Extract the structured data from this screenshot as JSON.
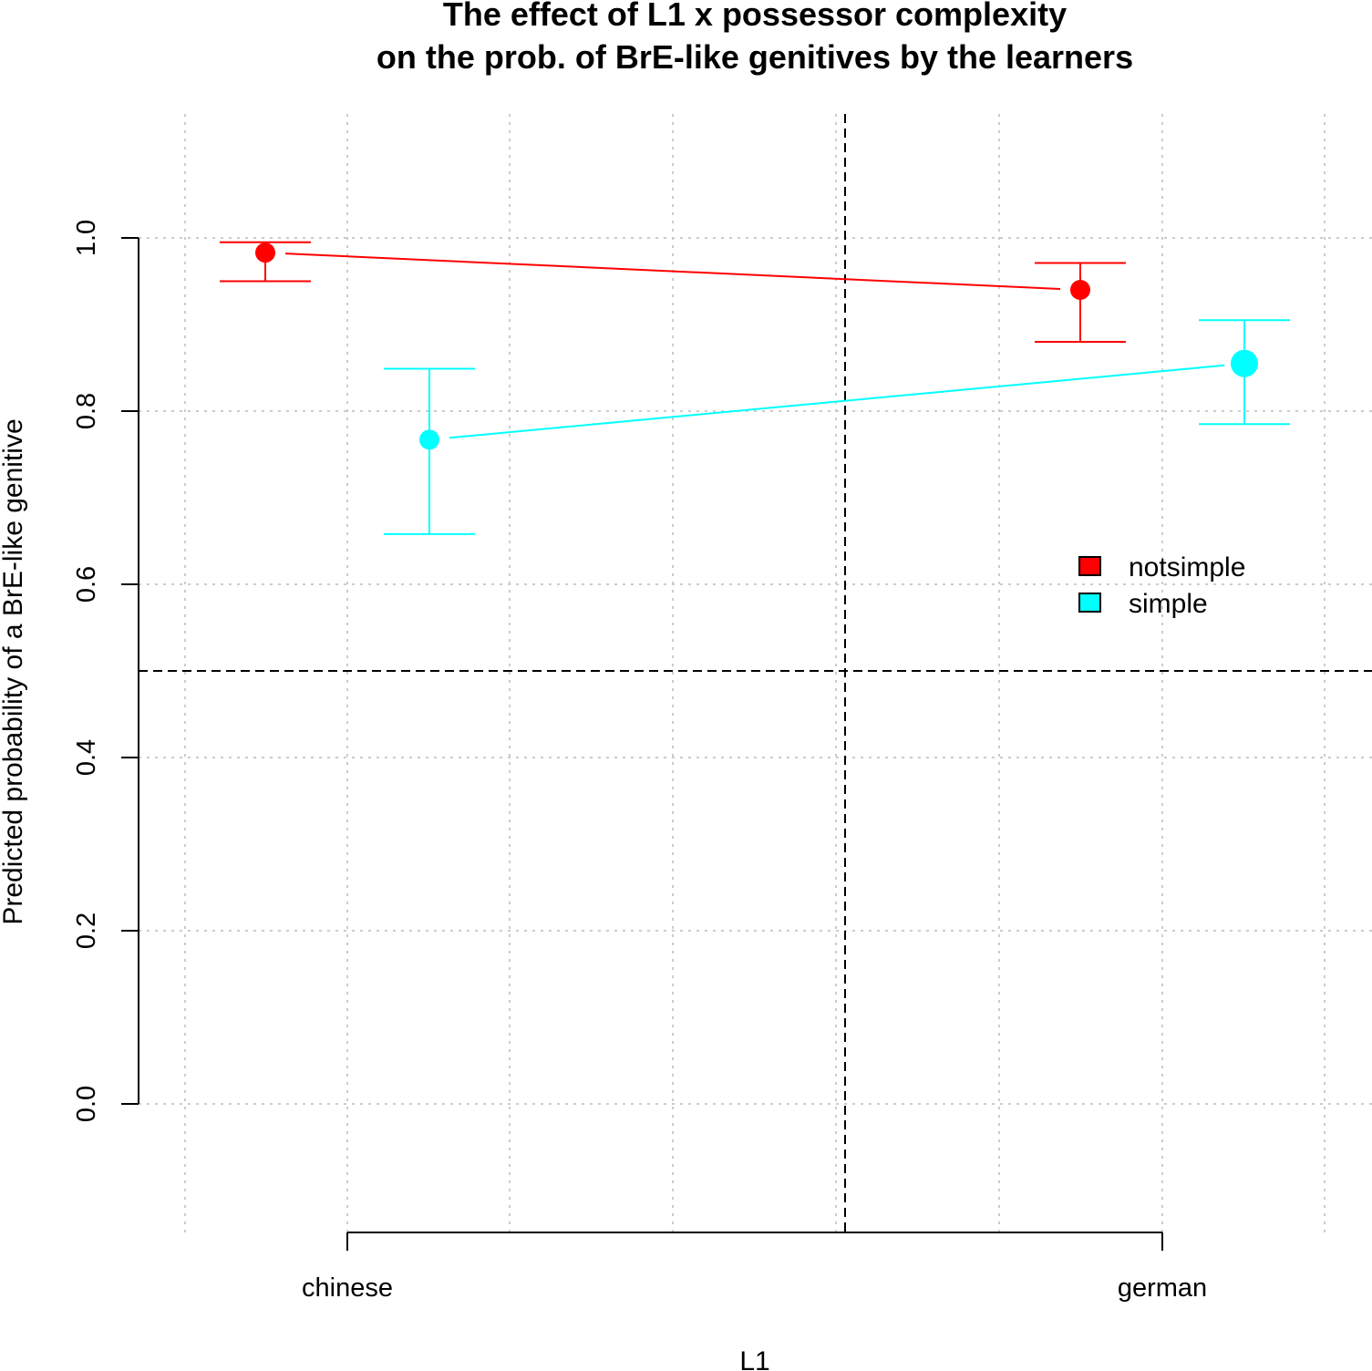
{
  "chart_data": {
    "type": "line",
    "title": "The effect of L1 x possessor complexity",
    "subtitle": "on the prob. of BrE-like genitives by the learners",
    "xlabel": "L1",
    "ylabel": "Predicted probability of a BrE-like genitive",
    "categories": [
      "chinese",
      "german"
    ],
    "yticks": [
      "0.0",
      "0.2",
      "0.4",
      "0.6",
      "0.8",
      "1.0"
    ],
    "ylim": [
      0,
      1
    ],
    "grid": true,
    "reference_lines": {
      "horizontal_y": 0.5,
      "vertical_between_categories": true
    },
    "legend": {
      "placement": "right",
      "entries": [
        "notsimple",
        "simple"
      ]
    },
    "series": [
      {
        "name": "notsimple",
        "color": "#ff0000",
        "values": [
          0.983,
          0.94
        ],
        "lower": [
          0.95,
          0.88
        ],
        "upper": [
          0.995,
          0.971
        ]
      },
      {
        "name": "simple",
        "color": "#00ffff",
        "values": [
          0.767,
          0.855
        ],
        "lower": [
          0.658,
          0.785
        ],
        "upper": [
          0.849,
          0.905
        ]
      }
    ]
  }
}
